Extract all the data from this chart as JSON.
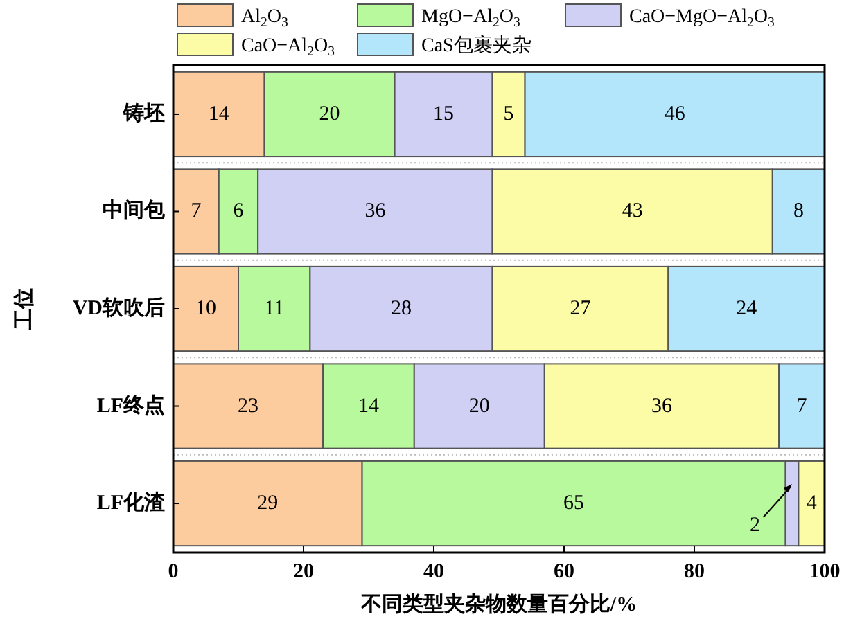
{
  "chart_data": {
    "type": "bar",
    "orientation": "horizontal",
    "stacked": true,
    "xlabel": "不同类型夹杂物数量百分比/%",
    "ylabel": "工位",
    "categories": [
      "铸坯",
      "中间包",
      "VD软吹后",
      "LF终点",
      "LF化渣"
    ],
    "series": [
      {
        "name": "Al$_{2}$O$_{3}$",
        "color": "#fccc9f",
        "values": [
          14,
          7,
          10,
          23,
          29
        ]
      },
      {
        "name": "MgO−Al$_{2}$O$_{3}$",
        "color": "#b7f99c",
        "values": [
          20,
          6,
          11,
          14,
          65
        ]
      },
      {
        "name": "CaO−MgO−Al$_{2}$O$_{3}$",
        "color": "#d0cff4",
        "values": [
          15,
          36,
          28,
          20,
          2
        ]
      },
      {
        "name": "CaO−Al$_{2}$O$_{3}$",
        "color": "#fbfca5",
        "values": [
          5,
          43,
          27,
          36,
          4
        ]
      },
      {
        "name": "CaS包裹夹杂",
        "color": "#b3e5fb",
        "values": [
          46,
          8,
          24,
          7,
          null
        ]
      }
    ],
    "xlim": [
      0,
      100
    ],
    "xticks": [
      0,
      20,
      40,
      60,
      80,
      100
    ],
    "data_labels": true,
    "legend": "top"
  }
}
